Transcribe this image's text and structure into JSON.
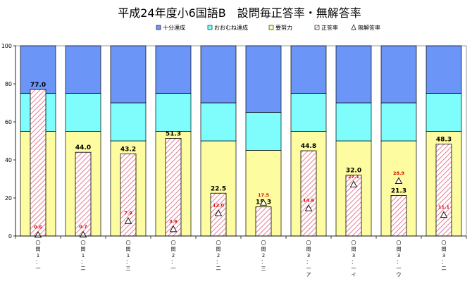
{
  "chart_data": {
    "type": "bar",
    "title": "平成24年度小6国語B　設問毎正答率・無解答率",
    "legend": [
      "十分達成",
      "おおむね達成",
      "要努力",
      "正答率",
      "無解答率"
    ],
    "legend_position": "top-right",
    "colors": {
      "sufficient": "#6b96f7",
      "mostly": "#7ffcfc",
      "effort": "#fdfca0",
      "correct_hatch": "#e05a7a",
      "border": "#000000"
    },
    "ylim": [
      0,
      100
    ],
    "yticks": [
      "0",
      "20",
      "40",
      "60",
      "80",
      "100"
    ],
    "categories": [
      "〇問1一",
      "〇問1二",
      "〇問1三",
      "〇問2一",
      "〇問2二",
      "〇問2三",
      "〇問3一ア",
      "〇問3一イ",
      "〇問3一ウ",
      "〇問3二"
    ],
    "category_chars": [
      [
        "〇",
        "問",
        "1",
        "：",
        "一"
      ],
      [
        "〇",
        "問",
        "1",
        "：",
        "二"
      ],
      [
        "〇",
        "問",
        "1",
        "：",
        "三"
      ],
      [
        "〇",
        "問",
        "2",
        "：",
        "一"
      ],
      [
        "〇",
        "問",
        "2",
        "：",
        "二"
      ],
      [
        "〇",
        "問",
        "2",
        "：",
        "三"
      ],
      [
        "〇",
        "問",
        "3",
        "：",
        "一",
        "ア"
      ],
      [
        "〇",
        "問",
        "3",
        "：",
        "一",
        "イ"
      ],
      [
        "〇",
        "問",
        "3",
        "：",
        "一",
        "ウ"
      ],
      [
        "〇",
        "問",
        "3",
        "：",
        "二"
      ]
    ],
    "bands": {
      "effort_top": [
        55,
        55,
        50,
        55,
        50,
        45,
        55,
        50,
        50,
        55
      ],
      "mostly_top": [
        75,
        75,
        70,
        75,
        70,
        65,
        75,
        70,
        70,
        75
      ]
    },
    "series": [
      {
        "name": "正答率",
        "values": [
          77.0,
          44.0,
          43.2,
          51.3,
          22.5,
          15.3,
          44.8,
          32.0,
          21.3,
          48.3
        ],
        "labels": [
          "77.0",
          "44.0",
          "43.2",
          "51.3",
          "22.5",
          "15.3",
          "44.8",
          "32.0",
          "21.3",
          "48.3"
        ]
      },
      {
        "name": "無解答率",
        "values": [
          0.6,
          0.7,
          7.9,
          3.6,
          12.0,
          17.5,
          14.6,
          27.1,
          28.9,
          11.1
        ],
        "labels": [
          "0.6",
          "0.7",
          "7.9",
          "3.6",
          "12.0",
          "17.5",
          "14.6",
          "27.1",
          "28.9",
          "11.1"
        ]
      }
    ]
  }
}
